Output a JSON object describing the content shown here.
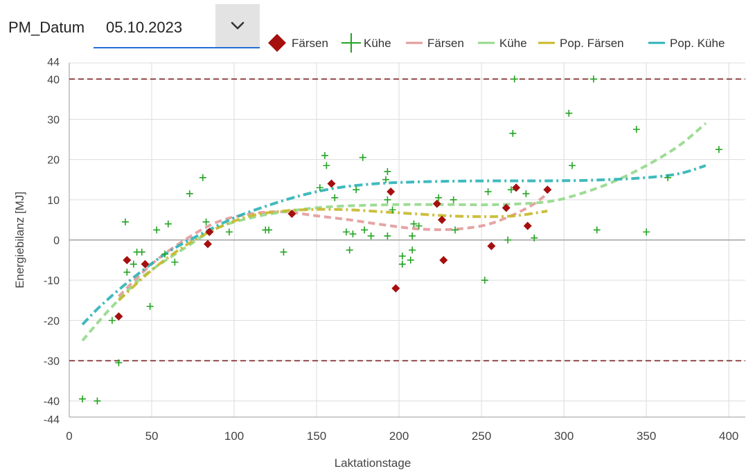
{
  "filter": {
    "label": "PM_Datum",
    "value": "05.10.2023",
    "chevron_icon": "chevron-down-icon"
  },
  "colors": {
    "faersen_marker": "#a50f0f",
    "kuehe_marker": "#22a322",
    "faersen_line": "#e39a9a",
    "kuehe_line": "#93d88a",
    "pop_faersen_line": "#c7b82a",
    "pop_kuehe_line": "#2bb3b6",
    "threshold": "#7a1f1f"
  },
  "chart_data": {
    "type": "scatter",
    "xlabel": "Laktationstage",
    "ylabel": "Energiebilanz [MJ]",
    "xlim": [
      0,
      410
    ],
    "ylim": [
      -44,
      44
    ],
    "x_ticks": [
      0,
      50,
      100,
      150,
      200,
      250,
      300,
      350,
      400
    ],
    "y_ticks": [
      -44,
      -40,
      -30,
      -20,
      -10,
      0,
      10,
      20,
      30,
      40,
      44
    ],
    "grid": true,
    "legend_position": "top",
    "thresholds": [
      40,
      -30
    ],
    "legend": [
      {
        "key": "faersen_points",
        "label": "Färsen"
      },
      {
        "key": "kuehe_points",
        "label": "Kühe"
      },
      {
        "key": "faersen_curve",
        "label": "Färsen"
      },
      {
        "key": "kuehe_curve",
        "label": "Kühe"
      },
      {
        "key": "pop_faersen_curve",
        "label": "Pop. Färsen"
      },
      {
        "key": "pop_kuehe_curve",
        "label": "Pop. Kühe"
      }
    ],
    "series": [
      {
        "name": "Färsen",
        "kind": "points",
        "marker": "diamond",
        "points": [
          [
            30,
            -19
          ],
          [
            35,
            -5
          ],
          [
            46,
            -6
          ],
          [
            84,
            -1
          ],
          [
            85,
            2
          ],
          [
            135,
            6.5
          ],
          [
            159,
            14
          ],
          [
            195,
            12
          ],
          [
            198,
            -12
          ],
          [
            223,
            9
          ],
          [
            226,
            5
          ],
          [
            227,
            -5
          ],
          [
            256,
            -1.5
          ],
          [
            265,
            8
          ],
          [
            271,
            13
          ],
          [
            278,
            3.5
          ],
          [
            290,
            12.5
          ]
        ]
      },
      {
        "name": "Kühe",
        "kind": "points",
        "marker": "plus",
        "points": [
          [
            8,
            -39.5
          ],
          [
            17,
            -40
          ],
          [
            26,
            -20
          ],
          [
            30,
            -30.5
          ],
          [
            34,
            4.5
          ],
          [
            35,
            -8
          ],
          [
            39,
            -6
          ],
          [
            41,
            -3
          ],
          [
            44,
            -3
          ],
          [
            49,
            -16.5
          ],
          [
            53,
            2.5
          ],
          [
            58,
            -3.5
          ],
          [
            60,
            4
          ],
          [
            64,
            -5.5
          ],
          [
            73,
            11.5
          ],
          [
            81,
            15.5
          ],
          [
            83,
            4.5
          ],
          [
            97,
            2
          ],
          [
            119,
            2.5
          ],
          [
            121,
            2.5
          ],
          [
            130,
            -3
          ],
          [
            152,
            13
          ],
          [
            155,
            21
          ],
          [
            156,
            18.5
          ],
          [
            161,
            10.5
          ],
          [
            168,
            2
          ],
          [
            170,
            -2.5
          ],
          [
            172,
            1.5
          ],
          [
            174,
            12.5
          ],
          [
            178,
            20.5
          ],
          [
            179,
            2.5
          ],
          [
            183,
            1
          ],
          [
            192,
            15
          ],
          [
            193,
            17
          ],
          [
            193,
            10
          ],
          [
            193,
            1
          ],
          [
            196,
            7.5
          ],
          [
            202,
            -4
          ],
          [
            202,
            -6
          ],
          [
            207,
            -5
          ],
          [
            208,
            -2.5
          ],
          [
            208,
            1
          ],
          [
            209,
            4
          ],
          [
            212,
            3.5
          ],
          [
            224,
            10.5
          ],
          [
            233,
            10
          ],
          [
            234,
            2.5
          ],
          [
            252,
            -10
          ],
          [
            254,
            12
          ],
          [
            266,
            0
          ],
          [
            268,
            12.5
          ],
          [
            269,
            26.5
          ],
          [
            270,
            40
          ],
          [
            277,
            11.5
          ],
          [
            282,
            0.5
          ],
          [
            303,
            31.5
          ],
          [
            305,
            18.5
          ],
          [
            318,
            40
          ],
          [
            320,
            2.5
          ],
          [
            344,
            27.5
          ],
          [
            350,
            2
          ],
          [
            363,
            15.5
          ],
          [
            394,
            22.5
          ]
        ]
      },
      {
        "name": "Färsen",
        "kind": "curve",
        "style": "dashed",
        "points": [
          [
            30,
            -14
          ],
          [
            50,
            -6
          ],
          [
            70,
            0
          ],
          [
            90,
            4.5
          ],
          [
            110,
            6.5
          ],
          [
            130,
            7
          ],
          [
            150,
            6
          ],
          [
            170,
            5
          ],
          [
            190,
            3.8
          ],
          [
            210,
            2.8
          ],
          [
            230,
            2.6
          ],
          [
            250,
            3.5
          ],
          [
            265,
            5.5
          ],
          [
            280,
            8.5
          ],
          [
            290,
            11.5
          ]
        ]
      },
      {
        "name": "Kühe",
        "kind": "curve",
        "style": "dashed",
        "points": [
          [
            8,
            -25
          ],
          [
            25,
            -17
          ],
          [
            45,
            -9
          ],
          [
            70,
            -2
          ],
          [
            90,
            3
          ],
          [
            110,
            5.5
          ],
          [
            130,
            7
          ],
          [
            150,
            8
          ],
          [
            170,
            8.5
          ],
          [
            200,
            8.8
          ],
          [
            230,
            8.8
          ],
          [
            260,
            8.8
          ],
          [
            290,
            9.5
          ],
          [
            310,
            11.5
          ],
          [
            330,
            14.5
          ],
          [
            350,
            18.5
          ],
          [
            370,
            23.5
          ],
          [
            386,
            29
          ]
        ]
      },
      {
        "name": "Pop. Färsen",
        "kind": "curve",
        "style": "dashdot",
        "points": [
          [
            30,
            -15
          ],
          [
            50,
            -7.5
          ],
          [
            70,
            -1.5
          ],
          [
            90,
            3
          ],
          [
            110,
            6
          ],
          [
            130,
            7.2
          ],
          [
            150,
            7.6
          ],
          [
            170,
            7.5
          ],
          [
            190,
            7
          ],
          [
            210,
            6.5
          ],
          [
            230,
            6
          ],
          [
            250,
            5.8
          ],
          [
            270,
            6
          ],
          [
            290,
            7.2
          ]
        ]
      },
      {
        "name": "Pop. Kühe",
        "kind": "curve",
        "style": "dashdot",
        "points": [
          [
            8,
            -21
          ],
          [
            20,
            -16
          ],
          [
            40,
            -9
          ],
          [
            60,
            -3
          ],
          [
            80,
            1.5
          ],
          [
            100,
            5.5
          ],
          [
            120,
            8.5
          ],
          [
            140,
            11
          ],
          [
            160,
            12.8
          ],
          [
            180,
            13.8
          ],
          [
            200,
            14.3
          ],
          [
            230,
            14.6
          ],
          [
            260,
            14.7
          ],
          [
            290,
            14.7
          ],
          [
            320,
            14.9
          ],
          [
            350,
            15.5
          ],
          [
            370,
            16.5
          ],
          [
            386,
            18.5
          ]
        ]
      }
    ]
  }
}
